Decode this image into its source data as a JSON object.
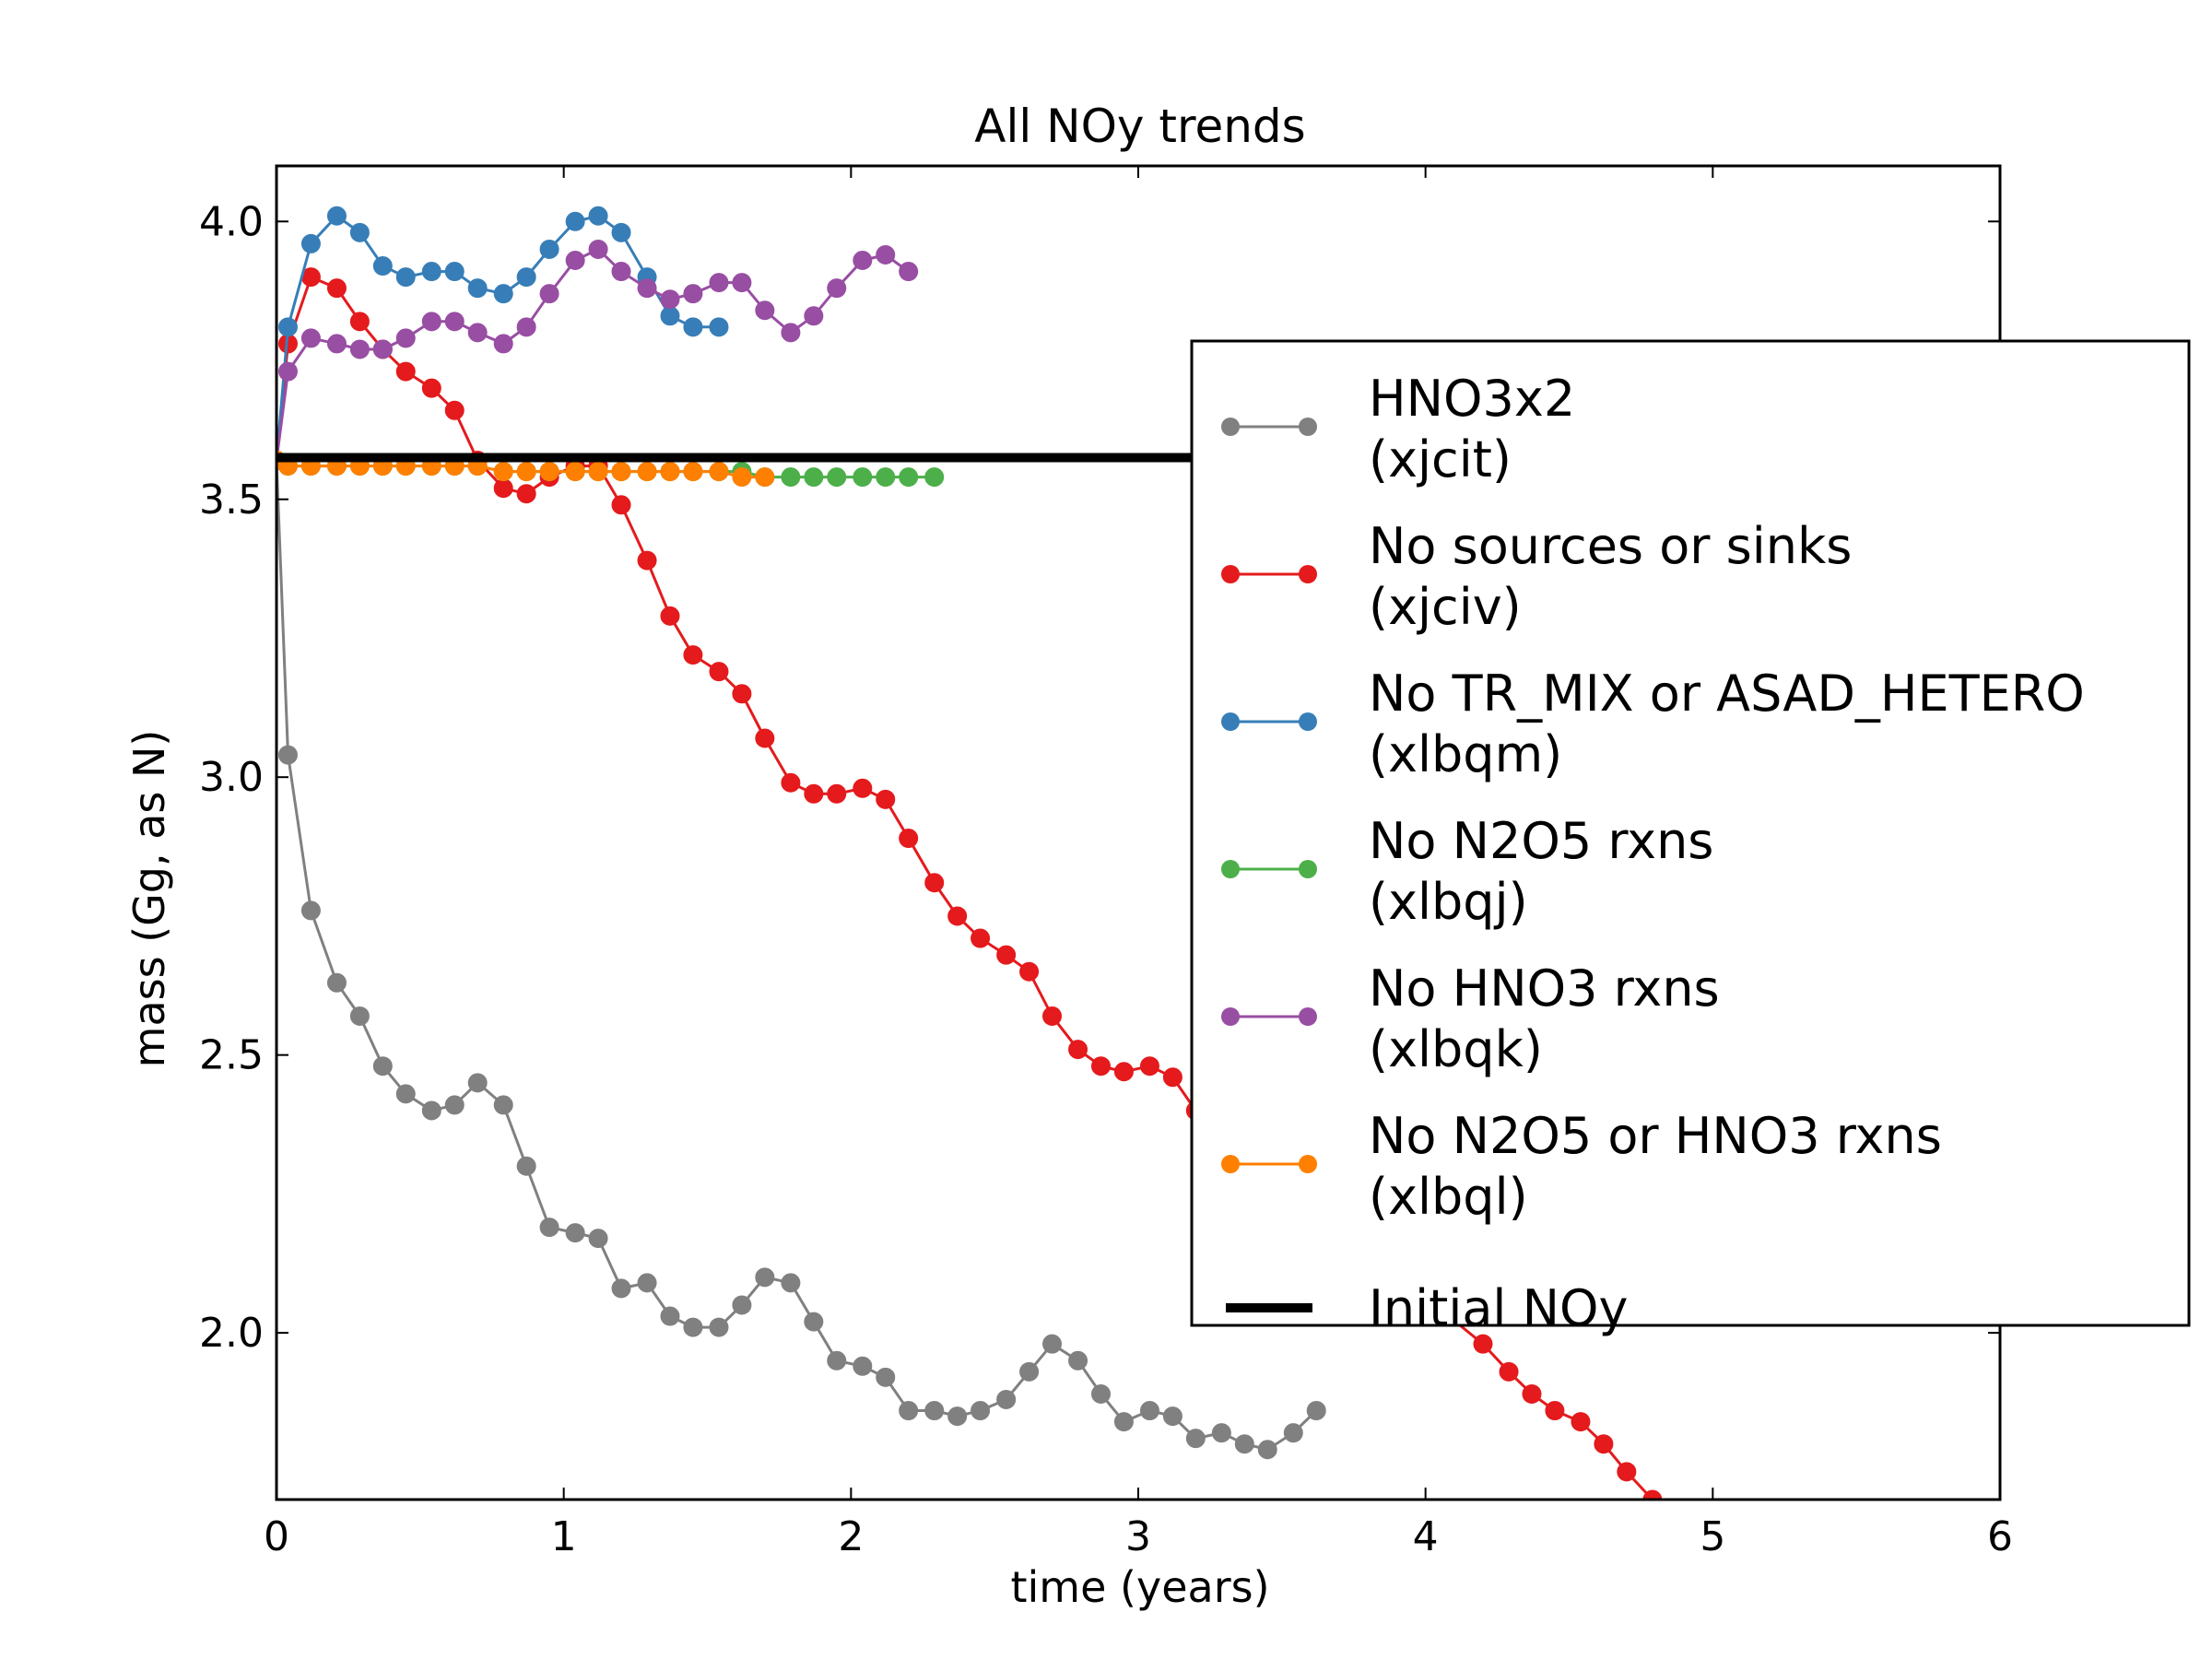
{
  "chart_data": {
    "type": "line",
    "title": "All NOy trends",
    "xlabel": "time (years)",
    "ylabel": "mass (Gg, as N)",
    "xlim": [
      0,
      6
    ],
    "ylim": [
      1.7,
      4.1
    ],
    "xticks": [
      0,
      1,
      2,
      3,
      4,
      5,
      6
    ],
    "xtick_labels": [
      "0",
      "1",
      "2",
      "3",
      "4",
      "5",
      "6"
    ],
    "yticks": [
      2.0,
      2.5,
      3.0,
      3.5,
      4.0
    ],
    "ytick_labels": [
      "2.0",
      "2.5",
      "3.0",
      "3.5",
      "4.0"
    ],
    "grid": false,
    "legend_placement": "right (upper-middle, overlapping plot)",
    "series": [
      {
        "name": "HNO3x2 (xjcit)",
        "label_lines": [
          "HNO3x2",
          "(xjcit)"
        ],
        "color": "#808080",
        "x": [
          0.0,
          0.04,
          0.12,
          0.21,
          0.29,
          0.37,
          0.45,
          0.54,
          0.62,
          0.7,
          0.79,
          0.87,
          0.95,
          1.04,
          1.12,
          1.2,
          1.29,
          1.37,
          1.45,
          1.54,
          1.62,
          1.7,
          1.79,
          1.87,
          1.95,
          2.04,
          2.12,
          2.2,
          2.29,
          2.37,
          2.45,
          2.54,
          2.62,
          2.7,
          2.79,
          2.87,
          2.95,
          3.04,
          3.12,
          3.2,
          3.29,
          3.37,
          3.45,
          3.54,
          3.62
        ],
        "y": [
          3.57,
          3.04,
          2.76,
          2.63,
          2.57,
          2.48,
          2.43,
          2.4,
          2.41,
          2.45,
          2.41,
          2.3,
          2.19,
          2.18,
          2.17,
          2.08,
          2.09,
          2.03,
          2.01,
          2.01,
          2.05,
          2.1,
          2.09,
          2.02,
          1.95,
          1.94,
          1.92,
          1.86,
          1.86,
          1.85,
          1.86,
          1.88,
          1.93,
          1.98,
          1.95,
          1.89,
          1.84,
          1.86,
          1.85,
          1.81,
          1.82,
          1.8,
          1.79,
          1.82,
          1.86
        ]
      },
      {
        "name": "No sources or sinks (xjciv)",
        "label_lines": [
          "No sources or sinks",
          "(xjciv)"
        ],
        "color": "#e41a1c",
        "x": [
          0.0,
          0.04,
          0.12,
          0.21,
          0.29,
          0.37,
          0.45,
          0.54,
          0.62,
          0.7,
          0.79,
          0.87,
          0.95,
          1.04,
          1.12,
          1.2,
          1.29,
          1.37,
          1.45,
          1.54,
          1.62,
          1.7,
          1.79,
          1.87,
          1.95,
          2.04,
          2.12,
          2.2,
          2.29,
          2.37,
          2.45,
          2.54,
          2.62,
          2.7,
          2.79,
          2.87,
          2.95,
          3.04,
          3.12,
          3.2,
          4.2,
          4.29,
          4.37,
          4.45,
          4.54,
          4.62,
          4.7,
          4.79
        ],
        "y": [
          3.57,
          3.78,
          3.9,
          3.88,
          3.82,
          3.77,
          3.73,
          3.7,
          3.66,
          3.57,
          3.52,
          3.51,
          3.54,
          3.56,
          3.56,
          3.49,
          3.39,
          3.29,
          3.22,
          3.19,
          3.15,
          3.07,
          2.99,
          2.97,
          2.97,
          2.98,
          2.96,
          2.89,
          2.81,
          2.75,
          2.71,
          2.68,
          2.65,
          2.57,
          2.51,
          2.48,
          2.47,
          2.48,
          2.46,
          2.4,
          1.98,
          1.93,
          1.89,
          1.86,
          1.84,
          1.8,
          1.75,
          1.7
        ]
      },
      {
        "name": "No TR_MIX or ASAD_HETERO (xlbqm)",
        "label_lines": [
          "No TR_MIX or ASAD_HETERO",
          "(xlbqm)"
        ],
        "color": "#377eb8",
        "x": [
          0.0,
          0.04,
          0.12,
          0.21,
          0.29,
          0.37,
          0.45,
          0.54,
          0.62,
          0.7,
          0.79,
          0.87,
          0.95,
          1.04,
          1.12,
          1.2,
          1.29,
          1.37,
          1.45,
          1.54
        ],
        "y": [
          3.57,
          3.81,
          3.96,
          4.01,
          3.98,
          3.92,
          3.9,
          3.91,
          3.91,
          3.88,
          3.87,
          3.9,
          3.95,
          4.0,
          4.01,
          3.98,
          3.9,
          3.83,
          3.81,
          3.81
        ]
      },
      {
        "name": "No N2O5 rxns (xlbqj)",
        "label_lines": [
          "No N2O5 rxns",
          "(xlbqj)"
        ],
        "color": "#4daf4a",
        "x": [
          0.0,
          0.04,
          0.12,
          0.21,
          0.29,
          0.37,
          0.45,
          0.54,
          0.62,
          0.7,
          0.79,
          0.87,
          0.95,
          1.04,
          1.12,
          1.2,
          1.29,
          1.37,
          1.45,
          1.54,
          1.62,
          1.7,
          1.79,
          1.87,
          1.95,
          2.04,
          2.12,
          2.2,
          2.29
        ],
        "y": [
          3.57,
          3.56,
          3.56,
          3.56,
          3.56,
          3.56,
          3.56,
          3.56,
          3.56,
          3.56,
          3.55,
          3.55,
          3.55,
          3.55,
          3.55,
          3.55,
          3.55,
          3.55,
          3.55,
          3.55,
          3.55,
          3.54,
          3.54,
          3.54,
          3.54,
          3.54,
          3.54,
          3.54,
          3.54
        ]
      },
      {
        "name": "No HNO3 rxns (xlbqk)",
        "label_lines": [
          "No HNO3 rxns",
          "(xlbqk)"
        ],
        "color": "#984ea3",
        "x": [
          0.0,
          0.04,
          0.12,
          0.21,
          0.29,
          0.37,
          0.45,
          0.54,
          0.62,
          0.7,
          0.79,
          0.87,
          0.95,
          1.04,
          1.12,
          1.2,
          1.29,
          1.37,
          1.45,
          1.54,
          1.62,
          1.7,
          1.79,
          1.87,
          1.95,
          2.04,
          2.12,
          2.2
        ],
        "y": [
          3.57,
          3.73,
          3.79,
          3.78,
          3.77,
          3.77,
          3.79,
          3.82,
          3.82,
          3.8,
          3.78,
          3.81,
          3.87,
          3.93,
          3.95,
          3.91,
          3.88,
          3.86,
          3.87,
          3.89,
          3.89,
          3.84,
          3.8,
          3.83,
          3.88,
          3.93,
          3.94,
          3.91
        ]
      },
      {
        "name": "No N2O5 or HNO3 rxns (xlbql)",
        "label_lines": [
          "No N2O5 or HNO3 rxns",
          "(xlbql)"
        ],
        "color": "#ff7f00",
        "x": [
          0.0,
          0.04,
          0.12,
          0.21,
          0.29,
          0.37,
          0.45,
          0.54,
          0.62,
          0.7,
          0.79,
          0.87,
          0.95,
          1.04,
          1.12,
          1.2,
          1.29,
          1.37,
          1.45,
          1.54,
          1.62,
          1.7
        ],
        "y": [
          3.57,
          3.56,
          3.56,
          3.56,
          3.56,
          3.56,
          3.56,
          3.56,
          3.56,
          3.56,
          3.55,
          3.55,
          3.55,
          3.55,
          3.55,
          3.55,
          3.55,
          3.55,
          3.55,
          3.55,
          3.54,
          3.54
        ]
      }
    ],
    "reference_line": {
      "name": "Initial NOy",
      "color": "#000000",
      "y": 3.575,
      "x": [
        0,
        6
      ]
    }
  }
}
